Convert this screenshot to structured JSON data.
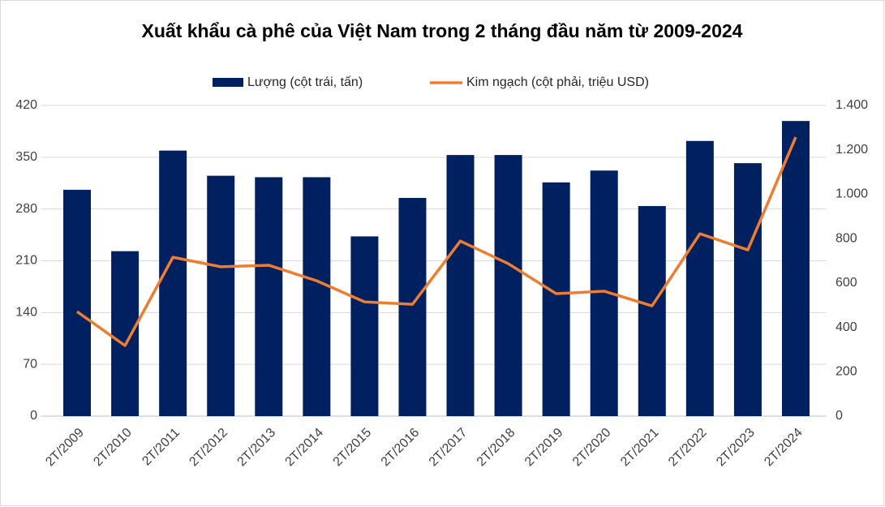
{
  "chart_data": {
    "type": "bar_line",
    "title": "Xuất khẩu cà phê của Việt Nam trong 2 tháng đầu năm từ 2009-2024",
    "categories": [
      "2T/2009",
      "2T/2010",
      "2T/2011",
      "2T/2012",
      "2T/2013",
      "2T/2014",
      "2T/2015",
      "2T/2016",
      "2T/2017",
      "2T/2018",
      "2T/2019",
      "2T/2020",
      "2T/2021",
      "2T/2022",
      "2T/2023",
      "2T/2024"
    ],
    "series": [
      {
        "name": "Lượng (cột trái, tấn)",
        "color": "#002060",
        "type": "bar",
        "axis": "y",
        "values": [
          306,
          223,
          359,
          325,
          323,
          323,
          243,
          295,
          353,
          353,
          316,
          332,
          284,
          372,
          342,
          399
        ]
      },
      {
        "name": "Kim ngạch (cột phải, triệu USD)",
        "color": "#ed7d31",
        "type": "line",
        "axis": "y2",
        "values": [
          471,
          318,
          716,
          673,
          680,
          610,
          515,
          504,
          789,
          687,
          552,
          563,
          497,
          822,
          749,
          1257
        ]
      }
    ],
    "ylim": [
      0,
      420
    ],
    "yticks": [
      0,
      70,
      140,
      210,
      280,
      350,
      420
    ],
    "y2lim": [
      0,
      1400
    ],
    "y2ticks": [
      0,
      200,
      400,
      600,
      800,
      {
        "value": 1000,
        "label": "1.000"
      },
      {
        "value": 1200,
        "label": "1.200"
      },
      {
        "value": 1400,
        "label": "1.400"
      }
    ],
    "grid": true,
    "legend": "top"
  }
}
